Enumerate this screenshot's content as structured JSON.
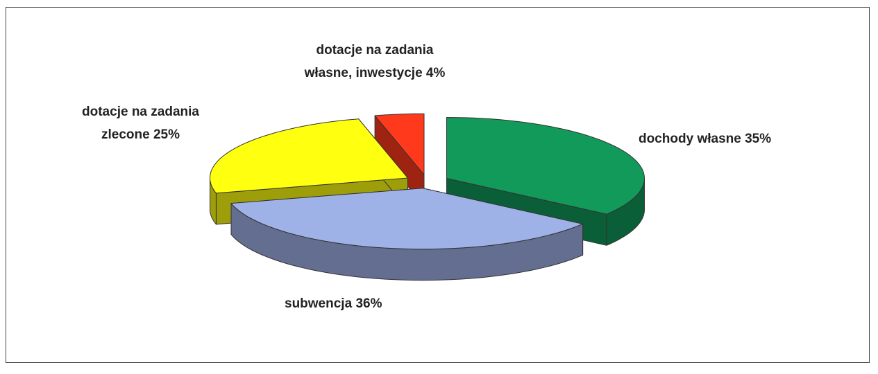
{
  "chart_data": {
    "type": "pie3d",
    "categories": [
      "dochody własne",
      "subwencja",
      "dotacje na zadania zlecone",
      "dotacje na zadania własne, inwestycje"
    ],
    "values": [
      35,
      36,
      25,
      4
    ],
    "value_labels": [
      "35%",
      "36%",
      "25%",
      "4%"
    ],
    "colors": [
      "#129a5a",
      "#9fb2e8",
      "#ffff10",
      "#ff3a1c"
    ]
  }
}
